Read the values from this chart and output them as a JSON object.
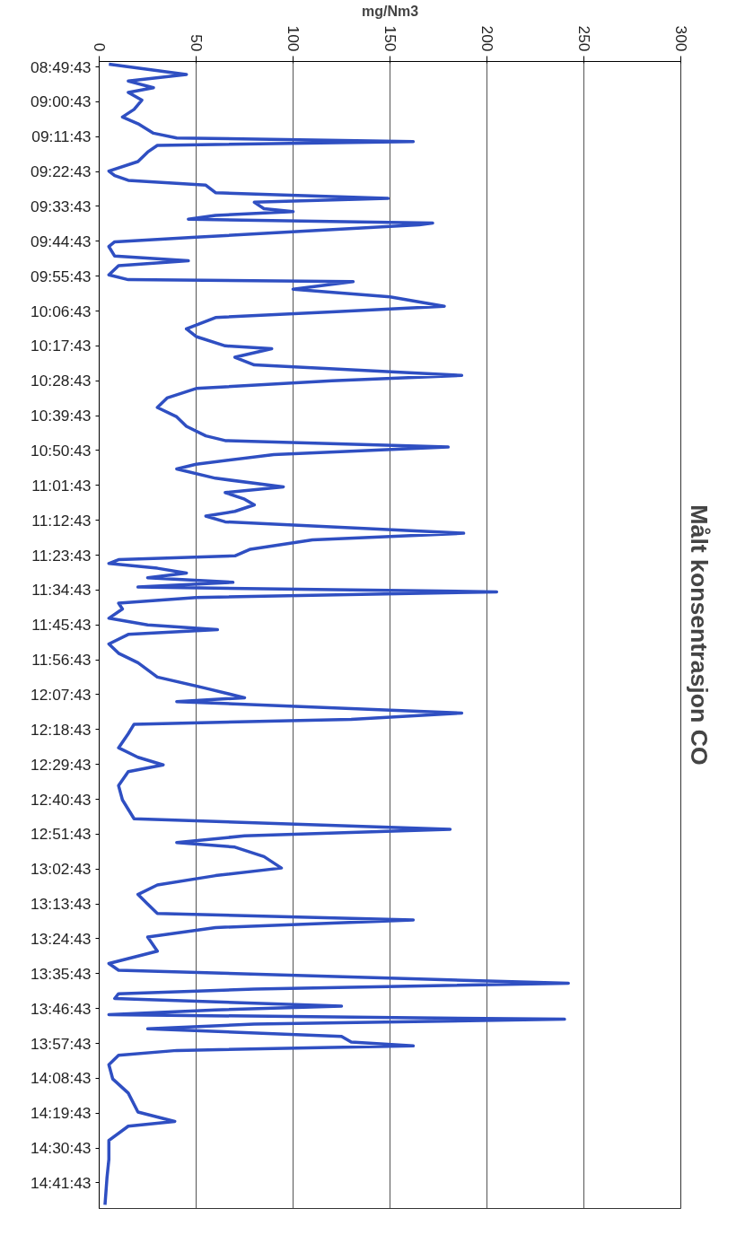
{
  "chart_data": {
    "type": "line",
    "orientation": "horizontal",
    "title": "Målt konsentrasjon CO",
    "xlabel": "mg/Nm3",
    "xlim": [
      0,
      300
    ],
    "xticks": [
      0,
      50,
      100,
      150,
      200,
      250,
      300
    ],
    "ylim": [
      14.83,
      8.8
    ],
    "yticks": [
      {
        "value": 8.8286,
        "label": "08:49:43"
      },
      {
        "value": 9.0119,
        "label": "09:00:43"
      },
      {
        "value": 9.1953,
        "label": "09:11:43"
      },
      {
        "value": 9.3786,
        "label": "09:22:43"
      },
      {
        "value": 9.5619,
        "label": "09:33:43"
      },
      {
        "value": 9.7453,
        "label": "09:44:43"
      },
      {
        "value": 9.9286,
        "label": "09:55:43"
      },
      {
        "value": 10.1119,
        "label": "10:06:43"
      },
      {
        "value": 10.2953,
        "label": "10:17:43"
      },
      {
        "value": 10.4786,
        "label": "10:28:43"
      },
      {
        "value": 10.6619,
        "label": "10:39:43"
      },
      {
        "value": 10.8453,
        "label": "10:50:43"
      },
      {
        "value": 11.0286,
        "label": "11:01:43"
      },
      {
        "value": 11.2119,
        "label": "11:12:43"
      },
      {
        "value": 11.3953,
        "label": "11:23:43"
      },
      {
        "value": 11.5786,
        "label": "11:34:43"
      },
      {
        "value": 11.7619,
        "label": "11:45:43"
      },
      {
        "value": 11.9453,
        "label": "11:56:43"
      },
      {
        "value": 12.1286,
        "label": "12:07:43"
      },
      {
        "value": 12.3119,
        "label": "12:18:43"
      },
      {
        "value": 12.4953,
        "label": "12:29:43"
      },
      {
        "value": 12.6786,
        "label": "12:40:43"
      },
      {
        "value": 12.8619,
        "label": "12:51:43"
      },
      {
        "value": 13.0453,
        "label": "13:02:43"
      },
      {
        "value": 13.2286,
        "label": "13:13:43"
      },
      {
        "value": 13.4119,
        "label": "13:24:43"
      },
      {
        "value": 13.5953,
        "label": "13:35:43"
      },
      {
        "value": 13.7786,
        "label": "13:46:43"
      },
      {
        "value": 13.9619,
        "label": "13:57:43"
      },
      {
        "value": 14.1453,
        "label": "14:08:43"
      },
      {
        "value": 14.3286,
        "label": "14:19:43"
      },
      {
        "value": 14.5119,
        "label": "14:30:43"
      },
      {
        "value": 14.6953,
        "label": "14:41:43"
      }
    ],
    "grid": "x",
    "line_style": "solid",
    "series": [
      {
        "color": "#2f4fc2",
        "x": [
          8.814,
          8.868,
          8.903,
          8.938,
          8.963,
          9.003,
          9.052,
          9.092,
          9.127,
          9.177,
          9.202,
          9.221,
          9.241,
          9.276,
          9.326,
          9.376,
          9.4,
          9.425,
          9.45,
          9.49,
          9.52,
          9.54,
          9.574,
          9.589,
          9.609,
          9.629,
          9.649,
          9.659,
          9.689,
          9.724,
          9.748,
          9.773,
          9.823,
          9.848,
          9.873,
          9.922,
          9.947,
          9.957,
          9.997,
          10.037,
          10.087,
          10.116,
          10.146,
          10.206,
          10.246,
          10.295,
          10.31,
          10.355,
          10.395,
          10.45,
          10.479,
          10.519,
          10.569,
          10.619,
          10.668,
          10.718,
          10.768,
          10.793,
          10.827,
          10.867,
          10.917,
          10.942,
          10.991,
          11.036,
          11.066,
          11.101,
          11.131,
          11.165,
          11.19,
          11.22,
          11.28,
          11.315,
          11.364,
          11.399,
          11.419,
          11.439,
          11.464,
          11.489,
          11.514,
          11.538,
          11.563,
          11.588,
          11.618,
          11.648,
          11.678,
          11.727,
          11.762,
          11.787,
          11.812,
          11.862,
          11.911,
          11.961,
          12.036,
          12.095,
          12.145,
          12.165,
          12.225,
          12.259,
          12.284,
          12.334,
          12.408,
          12.458,
          12.498,
          12.533,
          12.607,
          12.682,
          12.781,
          12.836,
          12.871,
          12.906,
          12.93,
          12.98,
          13.04,
          13.08,
          13.129,
          13.179,
          13.229,
          13.279,
          13.313,
          13.353,
          13.403,
          13.477,
          13.542,
          13.577,
          13.646,
          13.676,
          13.701,
          13.726,
          13.766,
          13.786,
          13.811,
          13.835,
          13.86,
          13.885,
          13.925,
          13.955,
          13.975,
          13.999,
          14.024,
          14.074,
          14.149,
          14.223,
          14.323,
          14.372,
          14.397,
          14.472,
          14.571,
          14.671,
          14.81
        ],
        "values": [
          5,
          45,
          15,
          28,
          15,
          22,
          18,
          12,
          20,
          28,
          40,
          162,
          30,
          25,
          20,
          5,
          8,
          15,
          55,
          60,
          149,
          80,
          85,
          100,
          60,
          46,
          172,
          165,
          110,
          50,
          8,
          5,
          8,
          46,
          10,
          5,
          15,
          131,
          100,
          150,
          178,
          120,
          60,
          45,
          50,
          65,
          89,
          70,
          80,
          187,
          120,
          50,
          35,
          30,
          40,
          45,
          55,
          65,
          180,
          90,
          50,
          40,
          60,
          95,
          65,
          75,
          80,
          70,
          55,
          65,
          188,
          110,
          78,
          70,
          10,
          5,
          30,
          45,
          25,
          69,
          20,
          205,
          50,
          10,
          12,
          5,
          25,
          61,
          15,
          5,
          10,
          20,
          30,
          55,
          75,
          40,
          187,
          130,
          18,
          15,
          10,
          20,
          33,
          15,
          10,
          12,
          18,
          181,
          75,
          40,
          70,
          85,
          94,
          60,
          30,
          20,
          25,
          30,
          162,
          60,
          25,
          30,
          5,
          10,
          242,
          80,
          10,
          8,
          125,
          60,
          5,
          240,
          80,
          25,
          125,
          130,
          162,
          40,
          10,
          5,
          7,
          15,
          20,
          39,
          15,
          5,
          5,
          4,
          3
        ]
      }
    ]
  }
}
